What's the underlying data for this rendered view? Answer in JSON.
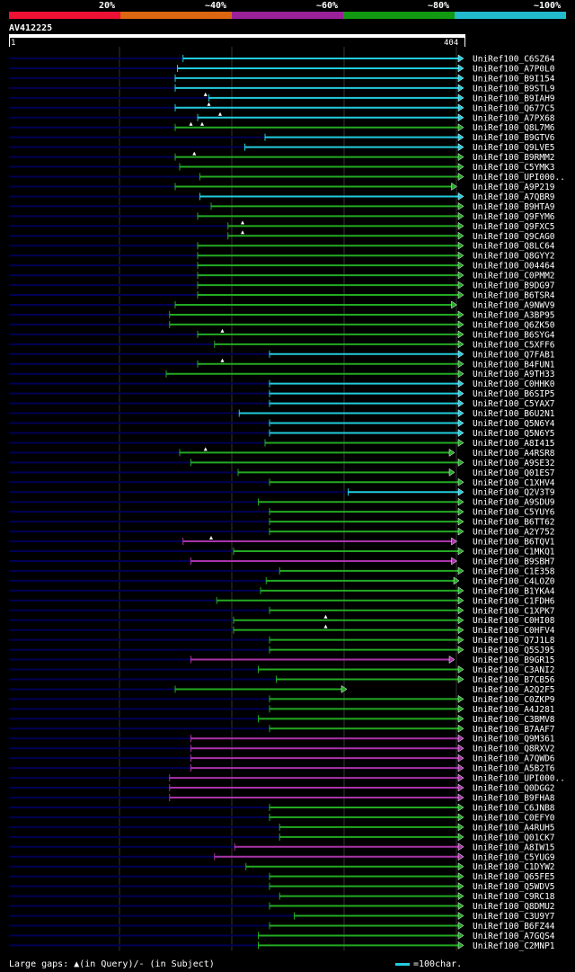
{
  "legend": {
    "segments": [
      {
        "label": "20%",
        "color": "#ee1133"
      },
      {
        "label": "~40%",
        "color": "#dd6611"
      },
      {
        "label": "~60%",
        "color": "#992299"
      },
      {
        "label": "~80%",
        "color": "#119911"
      },
      {
        "label": "~100%",
        "color": "#22bbcc"
      }
    ]
  },
  "query": {
    "id": "AV412225",
    "start": "1",
    "end": "404",
    "length": 404
  },
  "footer": {
    "gaps_text": "Large gaps: ▲(in Query)/- (in Subject)",
    "scale_text": "=100char."
  },
  "colors": {
    "cyan": "#22ccdd",
    "green": "#22aa22",
    "purple": "#aa33aa",
    "navy": "#000055",
    "grid": "#333333"
  },
  "hits": [
    {
      "name": "UniRef100_C6SZ64",
      "start": 155,
      "end": 404,
      "color": "cyan",
      "gaps": []
    },
    {
      "name": "UniRef100_A7P0L0",
      "start": 150,
      "end": 404,
      "color": "cyan",
      "gaps": []
    },
    {
      "name": "UniRef100_B9I154",
      "start": 148,
      "end": 404,
      "color": "cyan",
      "gaps": []
    },
    {
      "name": "UniRef100_B9STL9",
      "start": 148,
      "end": 404,
      "color": "cyan",
      "gaps": []
    },
    {
      "name": "UniRef100_B9IAH9",
      "start": 178,
      "end": 404,
      "color": "cyan",
      "gaps": [
        175
      ]
    },
    {
      "name": "UniRef100_Q677C5",
      "start": 148,
      "end": 404,
      "color": "cyan",
      "gaps": [
        178
      ]
    },
    {
      "name": "UniRef100_A7PX68",
      "start": 168,
      "end": 404,
      "color": "cyan",
      "gaps": [
        188
      ]
    },
    {
      "name": "UniRef100_Q8L7M6",
      "start": 148,
      "end": 404,
      "color": "green",
      "gaps": [
        162,
        172
      ]
    },
    {
      "name": "UniRef100_B9GTV6",
      "start": 228,
      "end": 404,
      "color": "cyan",
      "gaps": []
    },
    {
      "name": "UniRef100_Q9LVE5",
      "start": 210,
      "end": 404,
      "color": "cyan",
      "gaps": []
    },
    {
      "name": "UniRef100_B9RMM2",
      "start": 148,
      "end": 404,
      "color": "green",
      "gaps": [
        165
      ]
    },
    {
      "name": "UniRef100_C5YMK3",
      "start": 152,
      "end": 404,
      "color": "green",
      "gaps": []
    },
    {
      "name": "UniRef100_UPI000..",
      "start": 170,
      "end": 404,
      "color": "green",
      "gaps": []
    },
    {
      "name": "UniRef100_A9P219",
      "start": 148,
      "end": 398,
      "color": "green",
      "gaps": []
    },
    {
      "name": "UniRef100_A7QBR9",
      "start": 170,
      "end": 404,
      "color": "cyan",
      "gaps": []
    },
    {
      "name": "UniRef100_B9HTA9",
      "start": 180,
      "end": 404,
      "color": "green",
      "gaps": []
    },
    {
      "name": "UniRef100_Q9FYM6",
      "start": 168,
      "end": 404,
      "color": "green",
      "gaps": []
    },
    {
      "name": "UniRef100_Q9FXC5",
      "start": 195,
      "end": 404,
      "color": "green",
      "gaps": [
        208
      ]
    },
    {
      "name": "UniRef100_Q9CAG0",
      "start": 195,
      "end": 404,
      "color": "green",
      "gaps": [
        208
      ]
    },
    {
      "name": "UniRef100_Q8LC64",
      "start": 168,
      "end": 404,
      "color": "green",
      "gaps": []
    },
    {
      "name": "UniRef100_Q8GYY2",
      "start": 168,
      "end": 404,
      "color": "green",
      "gaps": []
    },
    {
      "name": "UniRef100_O04464",
      "start": 168,
      "end": 404,
      "color": "green",
      "gaps": []
    },
    {
      "name": "UniRef100_C0PMM2",
      "start": 168,
      "end": 404,
      "color": "green",
      "gaps": []
    },
    {
      "name": "UniRef100_B9DG97",
      "start": 168,
      "end": 404,
      "color": "green",
      "gaps": []
    },
    {
      "name": "UniRef100_B6TSR4",
      "start": 168,
      "end": 404,
      "color": "green",
      "gaps": []
    },
    {
      "name": "UniRef100_A9NWV9",
      "start": 148,
      "end": 398,
      "color": "green",
      "gaps": []
    },
    {
      "name": "UniRef100_A3BP95",
      "start": 143,
      "end": 404,
      "color": "green",
      "gaps": []
    },
    {
      "name": "UniRef100_Q6ZK50",
      "start": 143,
      "end": 404,
      "color": "green",
      "gaps": []
    },
    {
      "name": "UniRef100_B6SYG4",
      "start": 168,
      "end": 404,
      "color": "green",
      "gaps": [
        190
      ]
    },
    {
      "name": "UniRef100_C5XFF6",
      "start": 183,
      "end": 404,
      "color": "green",
      "gaps": []
    },
    {
      "name": "UniRef100_Q7FAB1",
      "start": 232,
      "end": 404,
      "color": "cyan",
      "gaps": []
    },
    {
      "name": "UniRef100_B4FUN1",
      "start": 168,
      "end": 404,
      "color": "green",
      "gaps": [
        190
      ]
    },
    {
      "name": "UniRef100_A9TH33",
      "start": 140,
      "end": 404,
      "color": "green",
      "gaps": []
    },
    {
      "name": "UniRef100_C0HHK0",
      "start": 232,
      "end": 404,
      "color": "cyan",
      "gaps": []
    },
    {
      "name": "UniRef100_B6SIP5",
      "start": 232,
      "end": 404,
      "color": "cyan",
      "gaps": []
    },
    {
      "name": "UniRef100_C5YAX7",
      "start": 232,
      "end": 404,
      "color": "cyan",
      "gaps": []
    },
    {
      "name": "UniRef100_B6U2N1",
      "start": 205,
      "end": 404,
      "color": "cyan",
      "gaps": []
    },
    {
      "name": "UniRef100_Q5N6Y4",
      "start": 232,
      "end": 404,
      "color": "cyan",
      "gaps": []
    },
    {
      "name": "UniRef100_Q5N6Y5",
      "start": 232,
      "end": 404,
      "color": "cyan",
      "gaps": []
    },
    {
      "name": "UniRef100_A8I415",
      "start": 228,
      "end": 404,
      "color": "green",
      "gaps": []
    },
    {
      "name": "UniRef100_A4RSR8",
      "start": 152,
      "end": 396,
      "color": "green",
      "gaps": [
        175
      ]
    },
    {
      "name": "UniRef100_A9SE32",
      "start": 162,
      "end": 404,
      "color": "green",
      "gaps": []
    },
    {
      "name": "UniRef100_Q01ES7",
      "start": 204,
      "end": 396,
      "color": "green",
      "gaps": []
    },
    {
      "name": "UniRef100_C1XHV4",
      "start": 232,
      "end": 404,
      "color": "green",
      "gaps": []
    },
    {
      "name": "UniRef100_Q2V3T9",
      "start": 302,
      "end": 404,
      "color": "cyan",
      "gaps": []
    },
    {
      "name": "UniRef100_A9SDU9",
      "start": 222,
      "end": 404,
      "color": "green",
      "gaps": []
    },
    {
      "name": "UniRef100_C5YUY6",
      "start": 232,
      "end": 404,
      "color": "green",
      "gaps": []
    },
    {
      "name": "UniRef100_B6TT62",
      "start": 232,
      "end": 404,
      "color": "green",
      "gaps": []
    },
    {
      "name": "UniRef100_A2Y752",
      "start": 232,
      "end": 404,
      "color": "green",
      "gaps": []
    },
    {
      "name": "UniRef100_B6TQV1",
      "start": 155,
      "end": 398,
      "color": "purple",
      "gaps": [
        180
      ]
    },
    {
      "name": "UniRef100_C1MKQ1",
      "start": 200,
      "end": 404,
      "color": "green",
      "gaps": []
    },
    {
      "name": "UniRef100_B9SBH7",
      "start": 162,
      "end": 398,
      "color": "purple",
      "gaps": []
    },
    {
      "name": "UniRef100_C1E358",
      "start": 241,
      "end": 404,
      "color": "green",
      "gaps": []
    },
    {
      "name": "UniRef100_C4LOZ0",
      "start": 229,
      "end": 400,
      "color": "green",
      "gaps": []
    },
    {
      "name": "UniRef100_B1YKA4",
      "start": 224,
      "end": 404,
      "color": "green",
      "gaps": []
    },
    {
      "name": "UniRef100_C1FDH6",
      "start": 185,
      "end": 404,
      "color": "green",
      "gaps": []
    },
    {
      "name": "UniRef100_C1XPK7",
      "start": 232,
      "end": 404,
      "color": "green",
      "gaps": []
    },
    {
      "name": "UniRef100_C0HI08",
      "start": 200,
      "end": 404,
      "color": "green",
      "gaps": [
        282
      ]
    },
    {
      "name": "UniRef100_C0HFV4",
      "start": 200,
      "end": 404,
      "color": "green",
      "gaps": [
        282
      ]
    },
    {
      "name": "UniRef100_Q7J1L8",
      "start": 232,
      "end": 404,
      "color": "green",
      "gaps": []
    },
    {
      "name": "UniRef100_Q5SJ95",
      "start": 232,
      "end": 404,
      "color": "green",
      "gaps": []
    },
    {
      "name": "UniRef100_B9GR15",
      "start": 162,
      "end": 396,
      "color": "purple",
      "gaps": []
    },
    {
      "name": "UniRef100_C3ANI2",
      "start": 222,
      "end": 404,
      "color": "green",
      "gaps": []
    },
    {
      "name": "UniRef100_B7CB56",
      "start": 238,
      "end": 404,
      "color": "green",
      "gaps": []
    },
    {
      "name": "UniRef100_A2Q2F5",
      "start": 148,
      "end": 300,
      "color": "green",
      "gaps": []
    },
    {
      "name": "UniRef100_C0ZKP9",
      "start": 232,
      "end": 404,
      "color": "green",
      "gaps": []
    },
    {
      "name": "UniRef100_A4J281",
      "start": 232,
      "end": 404,
      "color": "green",
      "gaps": []
    },
    {
      "name": "UniRef100_C3BMV8",
      "start": 222,
      "end": 404,
      "color": "green",
      "gaps": []
    },
    {
      "name": "UniRef100_B7AAF7",
      "start": 232,
      "end": 404,
      "color": "green",
      "gaps": []
    },
    {
      "name": "UniRef100_Q9M361",
      "start": 162,
      "end": 404,
      "color": "purple",
      "gaps": []
    },
    {
      "name": "UniRef100_Q8RXV2",
      "start": 162,
      "end": 404,
      "color": "purple",
      "gaps": []
    },
    {
      "name": "UniRef100_A7QWD6",
      "start": 162,
      "end": 404,
      "color": "purple",
      "gaps": []
    },
    {
      "name": "UniRef100_A5B2T6",
      "start": 162,
      "end": 404,
      "color": "purple",
      "gaps": []
    },
    {
      "name": "UniRef100_UPI000..",
      "start": 143,
      "end": 404,
      "color": "purple",
      "gaps": []
    },
    {
      "name": "UniRef100_Q0DGG2",
      "start": 143,
      "end": 404,
      "color": "purple",
      "gaps": []
    },
    {
      "name": "UniRef100_B9FHA8",
      "start": 143,
      "end": 404,
      "color": "purple",
      "gaps": []
    },
    {
      "name": "UniRef100_C6JNB8",
      "start": 232,
      "end": 404,
      "color": "green",
      "gaps": []
    },
    {
      "name": "UniRef100_C0EFY0",
      "start": 232,
      "end": 404,
      "color": "green",
      "gaps": []
    },
    {
      "name": "UniRef100_A4RUH5",
      "start": 241,
      "end": 404,
      "color": "green",
      "gaps": []
    },
    {
      "name": "UniRef100_Q01CK7",
      "start": 241,
      "end": 404,
      "color": "green",
      "gaps": []
    },
    {
      "name": "UniRef100_A8IW15",
      "start": 201,
      "end": 404,
      "color": "purple",
      "gaps": []
    },
    {
      "name": "UniRef100_C5YUG9",
      "start": 183,
      "end": 404,
      "color": "purple",
      "gaps": []
    },
    {
      "name": "UniRef100_C1DYW2",
      "start": 211,
      "end": 404,
      "color": "green",
      "gaps": []
    },
    {
      "name": "UniRef100_Q65FE5",
      "start": 232,
      "end": 404,
      "color": "green",
      "gaps": []
    },
    {
      "name": "UniRef100_Q5WDV5",
      "start": 232,
      "end": 404,
      "color": "green",
      "gaps": []
    },
    {
      "name": "UniRef100_C9RC18",
      "start": 241,
      "end": 404,
      "color": "green",
      "gaps": []
    },
    {
      "name": "UniRef100_Q8DMU2",
      "start": 232,
      "end": 404,
      "color": "green",
      "gaps": []
    },
    {
      "name": "UniRef100_C3U9Y7",
      "start": 254,
      "end": 404,
      "color": "green",
      "gaps": []
    },
    {
      "name": "UniRef100_B6FZ44",
      "start": 232,
      "end": 404,
      "color": "green",
      "gaps": []
    },
    {
      "name": "UniRef100_A7GQS4",
      "start": 222,
      "end": 404,
      "color": "green",
      "gaps": []
    },
    {
      "name": "UniRef100_C2MNP1",
      "start": 222,
      "end": 404,
      "color": "green",
      "gaps": []
    }
  ]
}
